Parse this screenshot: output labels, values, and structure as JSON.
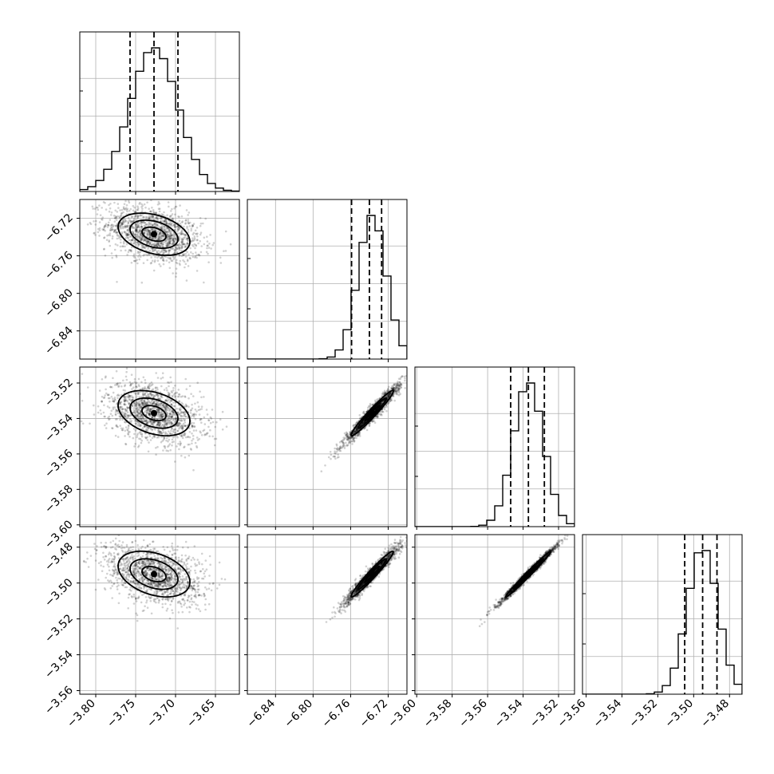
{
  "chart_data": {
    "type": "corner",
    "grid": true,
    "legend": "none",
    "parameters": [
      {
        "id": "p1",
        "range": [
          -3.82,
          -3.62
        ],
        "ticks": [
          -3.8,
          -3.75,
          -3.7,
          -3.65
        ],
        "tick_labels": [
          "−3.80",
          "−3.75",
          "−3.70",
          "−3.65"
        ],
        "mean": -3.727,
        "std": 0.03,
        "quantiles": [
          -3.757,
          -3.727,
          -3.697
        ]
      },
      {
        "id": "p2",
        "range": [
          -6.87,
          -6.7
        ],
        "ticks": [
          -6.84,
          -6.8,
          -6.76,
          -6.72
        ],
        "tick_labels": [
          "−6.84",
          "−6.80",
          "−6.76",
          "−6.72"
        ],
        "mean": -6.737,
        "std": 0.015,
        "quantiles": [
          -6.759,
          -6.74,
          -6.727
        ]
      },
      {
        "id": "p3",
        "range": [
          -3.601,
          -3.511
        ],
        "ticks": [
          -3.6,
          -3.58,
          -3.56,
          -3.54,
          -3.52
        ],
        "tick_labels": [
          "−3.60",
          "−3.58",
          "−3.56",
          "−3.54",
          "−3.52"
        ],
        "mean": -3.537,
        "std": 0.0085,
        "quantiles": [
          -3.547,
          -3.537,
          -3.528
        ]
      },
      {
        "id": "p4",
        "range": [
          -3.562,
          -3.473
        ],
        "ticks": [
          -3.56,
          -3.54,
          -3.52,
          -3.5,
          -3.48
        ],
        "tick_labels": [
          "−3.56",
          "−3.54",
          "−3.52",
          "−3.50",
          "−3.48"
        ],
        "mean": -3.495,
        "std": 0.0085,
        "quantiles": [
          -3.505,
          -3.495,
          -3.487
        ]
      }
    ],
    "correlations": {
      "1-0": -0.35,
      "2-0": -0.35,
      "3-0": -0.35,
      "2-1": 0.97,
      "3-1": 0.97,
      "3-2": 0.99
    },
    "histogram_bins": 20,
    "samples_per_panel": 1500,
    "contour_levels": [
      0.5,
      1.0,
      1.5
    ]
  }
}
